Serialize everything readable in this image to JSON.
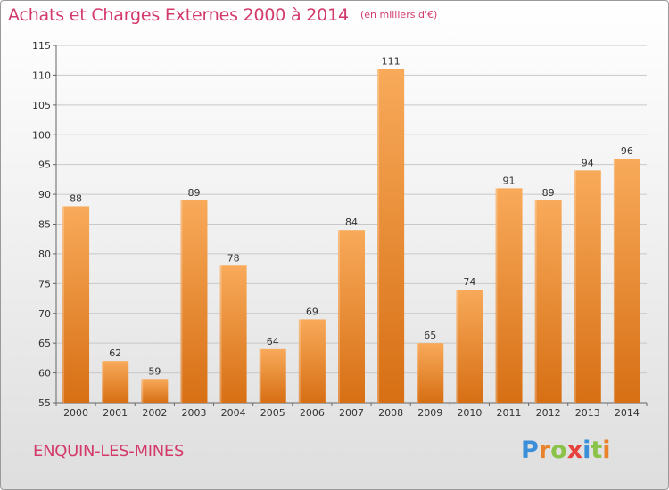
{
  "header": {
    "title": "Achats et Charges Externes 2000 à 2014",
    "unit": "(en milliers d'€)"
  },
  "footer": {
    "commune": "ENQUIN-LES-MINES",
    "logo_text": "Proxiti",
    "logo_letters": [
      {
        "ch": "P",
        "color": "#3a8fd8"
      },
      {
        "ch": "r",
        "color": "#e8822b"
      },
      {
        "ch": "o",
        "color": "#8bc34a"
      },
      {
        "ch": "x",
        "color": "#e8423c"
      },
      {
        "ch": "i",
        "color": "#3a8fd8"
      },
      {
        "ch": "t",
        "color": "#8bc34a"
      },
      {
        "ch": "i",
        "color": "#e8822b"
      }
    ]
  },
  "colors": {
    "bar_light": "#f8aa5a",
    "bar_dark": "#d76f14",
    "grid": "#c8c8c8",
    "text": "#333333",
    "accent": "#d33a6a"
  },
  "chart_data": {
    "type": "bar",
    "title": "Achats et Charges Externes 2000 à 2014",
    "subtitle": "(en milliers d'€)",
    "categories": [
      "2000",
      "2001",
      "2002",
      "2003",
      "2004",
      "2005",
      "2006",
      "2007",
      "2008",
      "2009",
      "2010",
      "2011",
      "2012",
      "2013",
      "2014"
    ],
    "values": [
      88,
      62,
      59,
      89,
      78,
      64,
      69,
      84,
      111,
      65,
      74,
      91,
      89,
      94,
      96
    ],
    "ylim": [
      55,
      115
    ],
    "yticks": [
      55,
      60,
      65,
      70,
      75,
      80,
      85,
      90,
      95,
      100,
      105,
      110,
      115
    ],
    "grid": true,
    "data_labels": true
  }
}
